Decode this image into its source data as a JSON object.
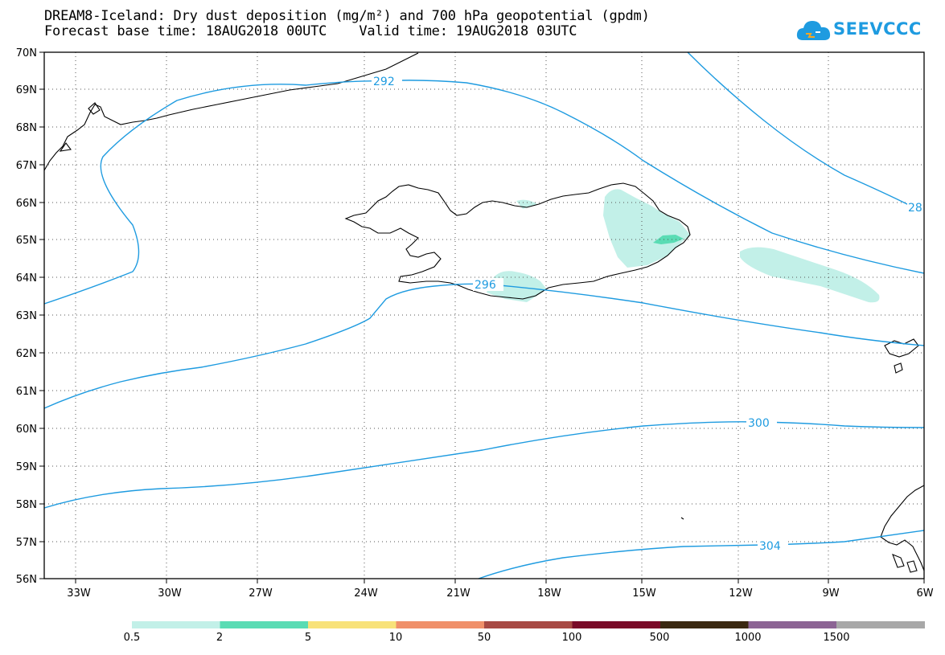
{
  "title": {
    "line1": "DREAM8-Iceland: Dry dust deposition (mg/m²) and 700 hPa geopotential (gpdm)",
    "line2": "Forecast base time: 18AUG2018 00UTC    Valid time: 19AUG2018 03UTC"
  },
  "logo": {
    "text": "SEEVCCC",
    "icon": "cloud-logo-icon",
    "color": "#1e9be0"
  },
  "map": {
    "lat_labels": [
      "70N",
      "69N",
      "68N",
      "67N",
      "66N",
      "65N",
      "64N",
      "63N",
      "62N",
      "61N",
      "60N",
      "59N",
      "58N",
      "57N",
      "56N"
    ],
    "lon_labels": [
      "33W",
      "30W",
      "27W",
      "24W",
      "21W",
      "18W",
      "15W",
      "12W",
      "9W",
      "6W"
    ],
    "contour_labels": [
      "292",
      "296",
      "300",
      "304",
      "28"
    ],
    "contour_color": "#1e9be0",
    "coastline_color": "#000000"
  },
  "colorbar": {
    "colors": [
      "#c2f0e8",
      "#5adcb4",
      "#f8e27a",
      "#f0906a",
      "#a84a44",
      "#7a0a28",
      "#3a2810",
      "#8c6494",
      "#a8a8a8"
    ],
    "labels": [
      "0.5",
      "2",
      "5",
      "10",
      "50",
      "100",
      "500",
      "1000",
      "1500"
    ]
  }
}
